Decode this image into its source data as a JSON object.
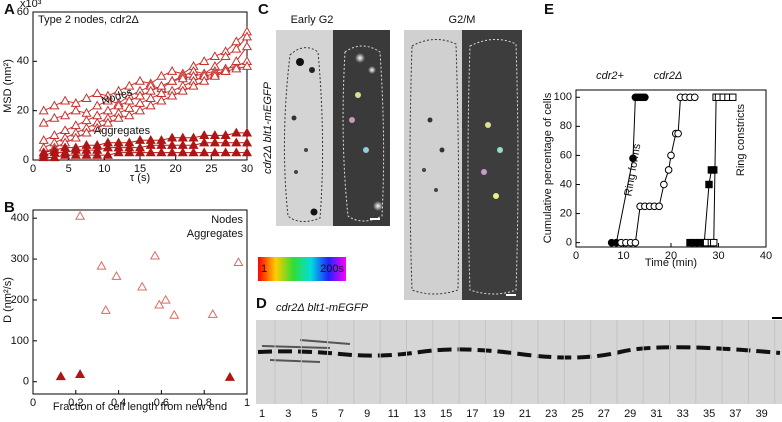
{
  "panel_letters": [
    "A",
    "B",
    "C",
    "D",
    "E"
  ],
  "chart_data": [
    {
      "type": "line",
      "title": "Type 2 nodes, cdr2Δ",
      "y_multiplier": "x10³",
      "xlabel": "τ (s)",
      "ylabel": "MSD (nm²)",
      "x": [
        1.5,
        3,
        4.5,
        6,
        7.5,
        9,
        10.5,
        12,
        13.5,
        15,
        16.5,
        18,
        19.5,
        21,
        22.5,
        24,
        25.5,
        27,
        28.5,
        30
      ],
      "xlim": [
        0,
        30
      ],
      "xticks": [
        0,
        5,
        10,
        15,
        20,
        25,
        30
      ],
      "ylim": [
        0,
        60
      ],
      "yticks": [
        0,
        20,
        40,
        60
      ],
      "annotations": [
        "Nodes",
        "Aggregates"
      ],
      "series": [
        {
          "color": "#c8322f",
          "marker": "triangle",
          "filled": false,
          "values": [
            20,
            22,
            24,
            23,
            25,
            27,
            26,
            28,
            30,
            32,
            31,
            34,
            36,
            35,
            38,
            40,
            42,
            44,
            48,
            52
          ]
        },
        {
          "color": "#c8322f",
          "marker": "triangle",
          "filled": false,
          "values": [
            15,
            17,
            18,
            20,
            19,
            22,
            24,
            23,
            26,
            28,
            30,
            29,
            32,
            34,
            36,
            35,
            38,
            42,
            45,
            50
          ]
        },
        {
          "color": "#c8322f",
          "marker": "triangle",
          "filled": false,
          "values": [
            8,
            10,
            12,
            14,
            16,
            18,
            20,
            22,
            24,
            26,
            28,
            30,
            32,
            33,
            34,
            35,
            36,
            37,
            38,
            40
          ]
        },
        {
          "color": "#c8322f",
          "marker": "triangle",
          "filled": false,
          "values": [
            5,
            7,
            9,
            11,
            13,
            15,
            17,
            19,
            21,
            23,
            25,
            27,
            28,
            30,
            32,
            34,
            35,
            36,
            40,
            46
          ]
        },
        {
          "color": "#c8322f",
          "marker": "triangle",
          "filled": false,
          "values": [
            3,
            5,
            7,
            9,
            11,
            13,
            15,
            17,
            18,
            20,
            22,
            24,
            26,
            28,
            30,
            32,
            34,
            36,
            37,
            38
          ]
        },
        {
          "color": "#b01515",
          "marker": "triangle",
          "filled": true,
          "values": [
            3,
            4,
            5,
            5,
            6,
            6,
            7,
            7,
            7,
            8,
            8,
            8,
            9,
            9,
            9,
            10,
            10,
            10,
            11,
            11
          ]
        },
        {
          "color": "#b01515",
          "marker": "triangle",
          "filled": true,
          "values": [
            2,
            3,
            3,
            4,
            4,
            4,
            5,
            5,
            5,
            5,
            6,
            6,
            6,
            6,
            6,
            7,
            7,
            7,
            7,
            7
          ]
        },
        {
          "color": "#b01515",
          "marker": "triangle",
          "filled": true,
          "values": [
            1,
            1,
            2,
            2,
            2,
            2,
            2,
            3,
            3,
            3,
            3,
            3,
            3,
            3,
            3,
            3,
            3,
            3,
            3,
            3
          ]
        }
      ]
    },
    {
      "type": "scatter",
      "xlabel": "Fraction of cell length from new end",
      "ylabel": "D (nm²/s)",
      "xlim": [
        0,
        1
      ],
      "xticks": [
        0,
        0.2,
        0.4,
        0.6,
        0.8,
        1
      ],
      "ylim": [
        -30,
        420
      ],
      "yticks": [
        0,
        100,
        200,
        300,
        400
      ],
      "legend": "upper right",
      "series": [
        {
          "name": "Nodes",
          "color": "#dd6b66",
          "marker": "triangle",
          "filled": false,
          "x": [
            0.22,
            0.32,
            0.34,
            0.39,
            0.51,
            0.57,
            0.59,
            0.62,
            0.66,
            0.84,
            0.96
          ],
          "values": [
            405,
            283,
            175,
            258,
            232,
            308,
            188,
            200,
            163,
            165,
            292
          ]
        },
        {
          "name": "Aggregates",
          "color": "#b01515",
          "marker": "triangle",
          "filled": true,
          "x": [
            0.13,
            0.22,
            0.92
          ],
          "values": [
            13,
            18,
            11
          ]
        }
      ]
    },
    {
      "type": "line",
      "xlabel": "Time (min)",
      "ylabel": "Cumulative percentage of cells",
      "xlim": [
        0,
        40
      ],
      "xticks": [
        0,
        10,
        20,
        30,
        40
      ],
      "ylim": [
        -3,
        105
      ],
      "yticks": [
        0,
        20,
        40,
        60,
        80,
        100
      ],
      "annotations": [
        "cdr2+",
        "cdr2Δ",
        "Ring forms",
        "Ring constricts"
      ],
      "series": [
        {
          "color": "#000000",
          "marker": "circle",
          "filled": true,
          "x": [
            7.5,
            8.5,
            12,
            12.5,
            13,
            13.5,
            14,
            14.5
          ],
          "values": [
            0,
            0,
            58,
            100,
            100,
            100,
            100,
            100
          ]
        },
        {
          "color": "#000000",
          "marker": "circle",
          "filled": false,
          "x": [
            9.5,
            10.5,
            11.5,
            12.5,
            13.5,
            14.5,
            15.5,
            16.5,
            17.5,
            18.5,
            19.5,
            20,
            21,
            21.5,
            22,
            23,
            24,
            25
          ],
          "values": [
            0,
            0,
            0,
            0,
            25,
            25,
            25,
            25,
            25,
            40,
            50,
            60,
            75,
            75,
            100,
            100,
            100,
            100
          ]
        },
        {
          "color": "#000000",
          "marker": "square",
          "filled": true,
          "x": [
            24,
            25,
            26,
            27,
            28,
            28.5,
            29
          ],
          "values": [
            0,
            0,
            0,
            0,
            40,
            50,
            50
          ]
        },
        {
          "color": "#000000",
          "marker": "square",
          "filled": false,
          "x": [
            27.5,
            28.5,
            29,
            29.5,
            30,
            31,
            32,
            33
          ],
          "values": [
            0,
            0,
            0,
            100,
            100,
            100,
            100,
            100
          ]
        }
      ]
    }
  ],
  "panel_c": {
    "labels": [
      "Early G2",
      "G2/M"
    ],
    "strain": "cdr2Δ blt1-mEGFP",
    "colorbar": [
      "1",
      "200s"
    ]
  },
  "panel_d": {
    "strain": "cdr2Δ blt1-mEGFP",
    "frames": [
      1,
      3,
      5,
      7,
      9,
      11,
      13,
      15,
      17,
      19,
      21,
      23,
      25,
      27,
      29,
      31,
      33,
      35,
      37,
      39
    ]
  }
}
